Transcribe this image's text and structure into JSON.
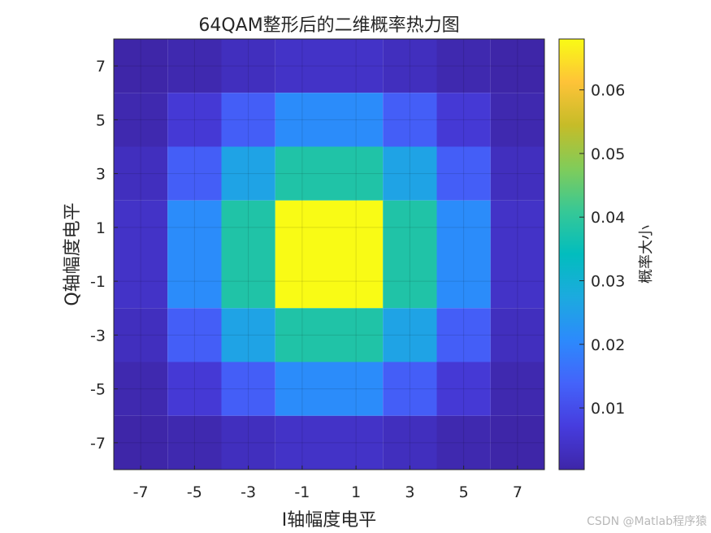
{
  "chart_data": {
    "type": "heatmap",
    "title": "64QAM整形后的二维概率热力图",
    "xlabel": "I轴幅度电平",
    "ylabel": "Q轴幅度电平",
    "x": [
      -7,
      -5,
      -3,
      -1,
      1,
      3,
      5,
      7
    ],
    "y": [
      -7,
      -5,
      -3,
      -1,
      1,
      3,
      5,
      7
    ],
    "xlim": [
      -8,
      8
    ],
    "ylim": [
      -8,
      8
    ],
    "x_ticks": [
      "-7",
      "-5",
      "-3",
      "-1",
      "1",
      "3",
      "5",
      "7"
    ],
    "y_ticks": [
      "-7",
      "-5",
      "-3",
      "-1",
      "1",
      "3",
      "5",
      "7"
    ],
    "values": [
      [
        0.0003,
        0.0012,
        0.003,
        0.0042,
        0.0042,
        0.003,
        0.0012,
        0.0003
      ],
      [
        0.0012,
        0.006,
        0.013,
        0.021,
        0.021,
        0.013,
        0.006,
        0.0012
      ],
      [
        0.003,
        0.013,
        0.026,
        0.038,
        0.038,
        0.026,
        0.013,
        0.003
      ],
      [
        0.0042,
        0.021,
        0.038,
        0.068,
        0.068,
        0.038,
        0.021,
        0.0042
      ],
      [
        0.0042,
        0.021,
        0.038,
        0.068,
        0.068,
        0.038,
        0.021,
        0.0042
      ],
      [
        0.003,
        0.013,
        0.026,
        0.038,
        0.038,
        0.026,
        0.013,
        0.003
      ],
      [
        0.0012,
        0.006,
        0.013,
        0.021,
        0.021,
        0.013,
        0.006,
        0.0012
      ],
      [
        0.0003,
        0.0012,
        0.003,
        0.0042,
        0.0042,
        0.003,
        0.0012,
        0.0003
      ]
    ],
    "colormap": "parula",
    "colorbar": {
      "label": "概率大小",
      "range": [
        0.0003,
        0.068
      ],
      "ticks": [
        0.01,
        0.02,
        0.03,
        0.04,
        0.05,
        0.06
      ],
      "tick_labels": [
        "0.01",
        "0.02",
        "0.03",
        "0.04",
        "0.05",
        "0.06"
      ]
    },
    "grid": true
  },
  "watermark": "CSDN @Matlab程序猿"
}
